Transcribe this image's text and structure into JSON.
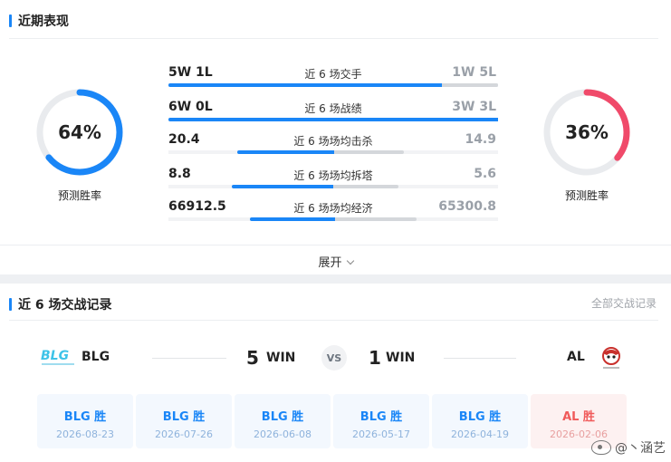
{
  "recent": {
    "title": "近期表现",
    "left_ring": {
      "percent": 64,
      "text": "64%",
      "label": "预测胜率",
      "color": "#1a86f7"
    },
    "right_ring": {
      "percent": 36,
      "text": "36%",
      "label": "预测胜率",
      "color": "#f04a6a"
    },
    "stats": [
      {
        "left": "5W 1L",
        "label": "近 6 场交手",
        "right": "1W 5L",
        "left_share": 0.83
      },
      {
        "left": "6W 0L",
        "label": "近 6 场战绩",
        "right": "3W 3L",
        "left_share": 1.0
      },
      {
        "left": "20.4",
        "label": "近 6 场场均击杀",
        "right": "14.9",
        "left_share": 0.58
      },
      {
        "left": "8.8",
        "label": "近 6 场场均拆塔",
        "right": "5.6",
        "left_share": 0.61
      },
      {
        "left": "66912.5",
        "label": "近 6 场场均经济",
        "right": "65300.8",
        "left_share": 0.51
      }
    ],
    "expand_label": "展开"
  },
  "h2h": {
    "title": "近 6 场交战记录",
    "all_link": "全部交战记录",
    "left_team": {
      "name": "BLG",
      "wins": "5",
      "win_label": "WIN"
    },
    "right_team": {
      "name": "AL",
      "wins": "1",
      "win_label": "WIN"
    },
    "vs_label": "VS",
    "matches": [
      {
        "result": "BLG 胜",
        "date": "2026-08-23",
        "winner": "left"
      },
      {
        "result": "BLG 胜",
        "date": "2026-07-26",
        "winner": "left"
      },
      {
        "result": "BLG 胜",
        "date": "2026-06-08",
        "winner": "left"
      },
      {
        "result": "BLG 胜",
        "date": "2026-05-17",
        "winner": "left"
      },
      {
        "result": "BLG 胜",
        "date": "2026-04-19",
        "winner": "left"
      },
      {
        "result": "AL 胜",
        "date": "2026-02-06",
        "winner": "right"
      }
    ]
  },
  "watermark": {
    "text": "@丶涵艺",
    "icon": "weibo-icon"
  }
}
